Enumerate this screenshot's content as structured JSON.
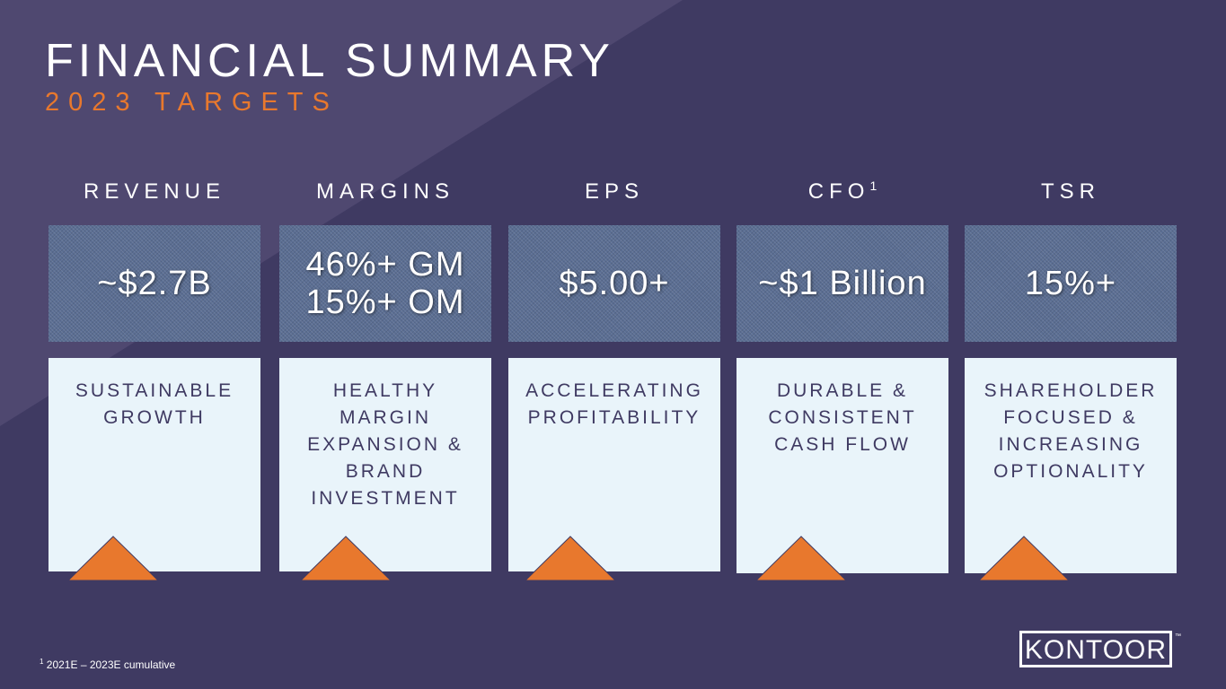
{
  "header": {
    "title": "FINANCIAL SUMMARY",
    "subtitle": "2023 TARGETS"
  },
  "columns": [
    {
      "header": "REVENUE",
      "header_sup": "",
      "value": "~$2.7B",
      "description": "SUSTAINABLE\nGROWTH"
    },
    {
      "header": "MARGINS",
      "header_sup": "",
      "value": "46%+ GM\n15%+ OM",
      "description": "HEALTHY\nMARGIN\nEXPANSION &\nBRAND\nINVESTMENT"
    },
    {
      "header": "EPS",
      "header_sup": "",
      "value": "$5.00+",
      "description": "ACCELERATING\nPROFITABILITY"
    },
    {
      "header": "CFO",
      "header_sup": "1",
      "value": "~$1 Billion",
      "description": "DURABLE &\nCONSISTENT\nCASH FLOW"
    },
    {
      "header": "TSR",
      "header_sup": "",
      "value": "15%+",
      "description": "SHAREHOLDER\nFOCUSED &\nINCREASING\nOPTIONALITY"
    }
  ],
  "footnote": {
    "sup": "1",
    "text": " 2021E – 2023E cumulative"
  },
  "logo": {
    "text": "KONTOOR",
    "tm": "™"
  },
  "colors": {
    "background": "#3f3a62",
    "accent": "#e8782d",
    "value_box": "#5b6e93",
    "desc_box": "#e9f4fa"
  },
  "icons": {
    "column_marker": "triangle-icon"
  }
}
